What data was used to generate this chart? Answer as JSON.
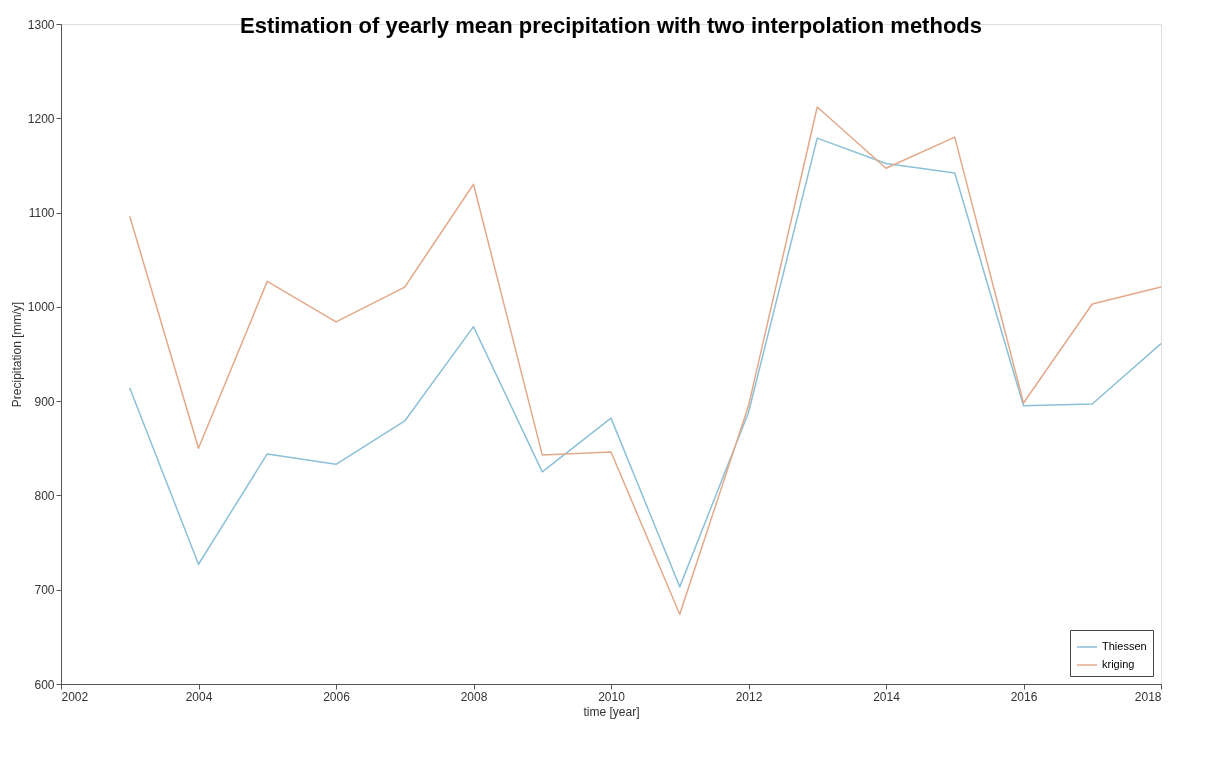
{
  "chart_data": {
    "type": "line",
    "title": "Estimation of yearly mean precipitation with two interpolation methods",
    "xlabel": "time [year]",
    "ylabel": "Precipitation [mm/y]",
    "x": [
      2003,
      2004,
      2005,
      2006,
      2007,
      2008,
      2009,
      2010,
      2011,
      2012,
      2013,
      2014,
      2015,
      2016,
      2017,
      2018
    ],
    "series": [
      {
        "name": "Thiessen",
        "color": "#8cc0d8",
        "values": [
          914,
          727,
          844,
          833,
          879,
          979,
          825,
          882,
          703,
          888,
          1179,
          1152,
          1142,
          895,
          897,
          961
        ]
      },
      {
        "name": "kriging",
        "color": "#e3a98a",
        "values": [
          1096,
          850,
          1027,
          984,
          1021,
          1130,
          843,
          846,
          674,
          895,
          1212,
          1147,
          1180,
          898,
          1003,
          1021
        ]
      }
    ],
    "xlim": [
      2002,
      2018
    ],
    "xticks": [
      2002,
      2004,
      2006,
      2008,
      2010,
      2012,
      2014,
      2016,
      2018
    ],
    "ylim": [
      600,
      1300
    ],
    "yticks": [
      600,
      700,
      800,
      900,
      1000,
      1100,
      1200,
      1300
    ],
    "grid": false,
    "legend": "bottom right",
    "marker": "none",
    "line_style": "solid"
  }
}
